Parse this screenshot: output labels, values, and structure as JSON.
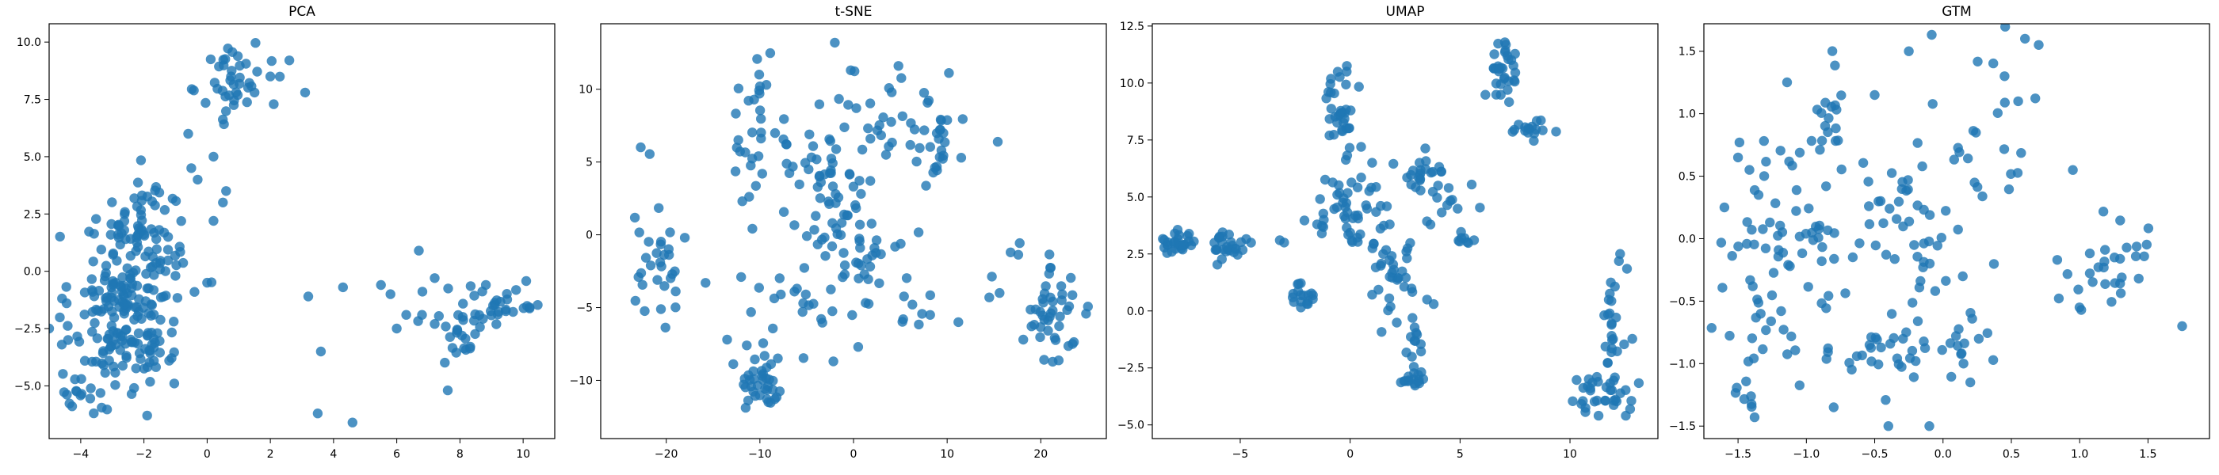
{
  "chart_data": [
    {
      "type": "scatter",
      "title": "PCA",
      "xlabel": "",
      "ylabel": "",
      "xlim": [
        -5.0,
        11.0
      ],
      "ylim": [
        -7.3,
        10.8
      ],
      "xticks": [
        -4,
        -2,
        0,
        2,
        4,
        6,
        8,
        10
      ],
      "yticks": [
        -5.0,
        -2.5,
        0.0,
        2.5,
        5.0,
        7.5,
        10.0
      ],
      "xtick_labels": [
        "−4",
        "−2",
        "0",
        "2",
        "4",
        "6",
        "8",
        "10"
      ],
      "ytick_labels": [
        "−5.0",
        "−2.5",
        "0.0",
        "2.5",
        "5.0",
        "7.5",
        "10.0"
      ],
      "grid": false,
      "color": "#1f77b4",
      "clusters": [
        {
          "x": -2.6,
          "y": -1.8,
          "sx": 0.85,
          "sy": 1.7,
          "n": 180
        },
        {
          "x": -2.0,
          "y": 1.6,
          "sx": 0.7,
          "sy": 1.2,
          "n": 70
        },
        {
          "x": -4.0,
          "y": -5.0,
          "sx": 0.4,
          "sy": 0.6,
          "n": 16
        },
        {
          "x": 0.9,
          "y": 8.2,
          "sx": 0.55,
          "sy": 0.9,
          "n": 40
        },
        {
          "x": 9.0,
          "y": -1.5,
          "sx": 0.9,
          "sy": 0.8,
          "n": 40
        },
        {
          "x": 7.9,
          "y": -3.6,
          "sx": 0.4,
          "sy": 0.9,
          "n": 15
        }
      ],
      "points": [
        [
          -0.6,
          6.0
        ],
        [
          -0.3,
          4.0
        ],
        [
          0.2,
          5.0
        ],
        [
          0.6,
          3.5
        ],
        [
          0.5,
          3.0
        ],
        [
          0.2,
          2.2
        ],
        [
          0.0,
          -0.5
        ],
        [
          -0.5,
          4.5
        ],
        [
          2.6,
          9.2
        ],
        [
          3.1,
          7.8
        ],
        [
          1.5,
          7.8
        ],
        [
          2.0,
          8.5
        ],
        [
          6.7,
          0.9
        ],
        [
          6.3,
          -1.9
        ],
        [
          5.8,
          -1.0
        ],
        [
          5.5,
          -0.6
        ],
        [
          6.8,
          -1.9
        ],
        [
          7.2,
          -0.3
        ],
        [
          7.2,
          -2.3
        ],
        [
          6.0,
          -2.5
        ],
        [
          4.3,
          -0.7
        ],
        [
          3.2,
          -1.1
        ],
        [
          3.6,
          -3.5
        ],
        [
          3.5,
          -6.2
        ],
        [
          4.6,
          -6.6
        ],
        [
          -4.6,
          -3.2
        ],
        [
          -4.4,
          -3.0
        ],
        [
          -0.4,
          -0.9
        ],
        [
          -1.2,
          -3.9
        ]
      ]
    },
    {
      "type": "scatter",
      "title": "t-SNE",
      "xlabel": "",
      "ylabel": "",
      "xlim": [
        -27.0,
        27.0
      ],
      "ylim": [
        -14.0,
        14.5
      ],
      "xticks": [
        -20,
        -10,
        0,
        10,
        20
      ],
      "yticks": [
        -10,
        -5,
        0,
        5,
        10
      ],
      "xtick_labels": [
        "−20",
        "−10",
        "0",
        "10",
        "20"
      ],
      "ytick_labels": [
        "−10",
        "−5",
        "0",
        "5",
        "10"
      ],
      "grid": false,
      "color": "#1f77b4",
      "clusters": [
        {
          "x": -21.0,
          "y": -1.0,
          "sx": 1.6,
          "sy": 2.5,
          "n": 32
        },
        {
          "x": -9.5,
          "y": -10.3,
          "sx": 1.3,
          "sy": 0.9,
          "n": 36
        },
        {
          "x": 21.0,
          "y": -5.0,
          "sx": 2.3,
          "sy": 2.0,
          "n": 48
        },
        {
          "x": 6.0,
          "y": 8.0,
          "sx": 3.2,
          "sy": 1.8,
          "n": 36
        },
        {
          "x": -1.5,
          "y": 0.5,
          "sx": 3.2,
          "sy": 2.8,
          "n": 65
        },
        {
          "x": -10.5,
          "y": 7.5,
          "sx": 1.8,
          "sy": 2.6,
          "n": 30
        },
        {
          "x": 3.5,
          "y": -3.0,
          "sx": 2.2,
          "sy": 1.6,
          "n": 20
        },
        {
          "x": -6.5,
          "y": -5.5,
          "sx": 2.5,
          "sy": 1.6,
          "n": 18
        },
        {
          "x": 9.0,
          "y": 5.0,
          "sx": 1.0,
          "sy": 1.2,
          "n": 12
        },
        {
          "x": -4.0,
          "y": 5.5,
          "sx": 2.0,
          "sy": 1.5,
          "n": 18
        }
      ],
      "points": [
        [
          -2.0,
          13.2
        ],
        [
          -10.0,
          10.2
        ],
        [
          -9.3,
          10.3
        ],
        [
          4.8,
          11.6
        ],
        [
          11.5,
          5.3
        ],
        [
          11.2,
          -6.0
        ],
        [
          14.5,
          -4.3
        ],
        [
          -13.5,
          -7.2
        ],
        [
          -15.8,
          -3.3
        ],
        [
          -11.4,
          -7.6
        ],
        [
          1.8,
          6.6
        ],
        [
          0.3,
          8.7
        ],
        [
          -0.3,
          11.3
        ],
        [
          0.5,
          -7.7
        ],
        [
          -12.0,
          -2.9
        ],
        [
          15.6,
          -4.0
        ]
      ]
    },
    {
      "type": "scatter",
      "title": "UMAP",
      "xlabel": "",
      "ylabel": "",
      "xlim": [
        -9.0,
        14.0
      ],
      "ylim": [
        -5.6,
        12.6
      ],
      "xticks": [
        -5,
        0,
        5,
        10
      ],
      "yticks": [
        -5.0,
        -2.5,
        0.0,
        2.5,
        5.0,
        7.5,
        10.0,
        12.5
      ],
      "xtick_labels": [
        "−5",
        "0",
        "5",
        "10"
      ],
      "ytick_labels": [
        "−5.0",
        "−2.5",
        "0.0",
        "2.5",
        "5.0",
        "7.5",
        "10.0",
        "12.5"
      ],
      "grid": false,
      "color": "#1f77b4",
      "clusters": [
        {
          "x": -7.8,
          "y": 3.0,
          "sx": 0.4,
          "sy": 0.25,
          "n": 28
        },
        {
          "x": -5.5,
          "y": 2.9,
          "sx": 0.35,
          "sy": 0.35,
          "n": 28
        },
        {
          "x": -2.1,
          "y": 0.7,
          "sx": 0.25,
          "sy": 0.3,
          "n": 18
        },
        {
          "x": -0.5,
          "y": 8.9,
          "sx": 0.4,
          "sy": 0.9,
          "n": 34
        },
        {
          "x": 0.0,
          "y": 4.5,
          "sx": 0.9,
          "sy": 0.9,
          "n": 50
        },
        {
          "x": 2.2,
          "y": 1.6,
          "sx": 0.8,
          "sy": 0.9,
          "n": 30
        },
        {
          "x": 3.2,
          "y": 6.0,
          "sx": 0.6,
          "sy": 0.4,
          "n": 22
        },
        {
          "x": 2.9,
          "y": -1.5,
          "sx": 0.25,
          "sy": 0.8,
          "n": 14
        },
        {
          "x": 2.9,
          "y": -3.0,
          "sx": 0.3,
          "sy": 0.2,
          "n": 14
        },
        {
          "x": 4.6,
          "y": 4.6,
          "sx": 0.5,
          "sy": 0.5,
          "n": 12
        },
        {
          "x": 5.3,
          "y": 3.1,
          "sx": 0.2,
          "sy": 0.15,
          "n": 8
        },
        {
          "x": 6.9,
          "y": 10.4,
          "sx": 0.4,
          "sy": 0.8,
          "n": 32
        },
        {
          "x": 8.2,
          "y": 8.0,
          "sx": 0.4,
          "sy": 0.2,
          "n": 16
        },
        {
          "x": 12.0,
          "y": -0.5,
          "sx": 0.3,
          "sy": 1.3,
          "n": 26
        },
        {
          "x": 11.2,
          "y": -3.7,
          "sx": 0.75,
          "sy": 0.6,
          "n": 34
        }
      ],
      "points": [
        [
          -1.5,
          3.8
        ],
        [
          -1.2,
          4.0
        ],
        [
          -3.2,
          3.1
        ],
        [
          -3.0,
          3.0
        ],
        [
          1.8,
          3.8
        ],
        [
          1.5,
          2.5
        ],
        [
          1.8,
          1.5
        ],
        [
          3.5,
          0.5
        ],
        [
          3.8,
          0.3
        ],
        [
          4.0,
          5.5
        ],
        [
          0.5,
          7.2
        ],
        [
          1.0,
          6.5
        ]
      ]
    },
    {
      "type": "scatter",
      "title": "GTM",
      "xlabel": "",
      "ylabel": "",
      "xlim": [
        -1.75,
        1.95
      ],
      "ylim": [
        -1.6,
        1.72
      ],
      "xticks": [
        -1.5,
        -1.0,
        -0.5,
        0.0,
        0.5,
        1.0,
        1.5
      ],
      "yticks": [
        -1.5,
        -1.0,
        -0.5,
        0.0,
        0.5,
        1.0,
        1.5
      ],
      "xtick_labels": [
        "−1.5",
        "−1.0",
        "−0.5",
        "0.0",
        "0.5",
        "1.0",
        "1.5"
      ],
      "ytick_labels": [
        "−1.5",
        "−1.0",
        "−0.5",
        "0.0",
        "0.5",
        "1.0",
        "1.5"
      ],
      "grid": false,
      "color": "#1f77b4",
      "clusters": [
        {
          "x": -1.0,
          "y": -0.05,
          "sx": 0.28,
          "sy": 0.15,
          "n": 40
        },
        {
          "x": -1.25,
          "y": -0.65,
          "sx": 0.2,
          "sy": 0.25,
          "n": 26
        },
        {
          "x": -0.4,
          "y": -0.95,
          "sx": 0.25,
          "sy": 0.15,
          "n": 26
        },
        {
          "x": -0.05,
          "y": -0.75,
          "sx": 0.2,
          "sy": 0.25,
          "n": 18
        },
        {
          "x": -0.3,
          "y": 0.3,
          "sx": 0.2,
          "sy": 0.15,
          "n": 22
        },
        {
          "x": 0.2,
          "y": 0.85,
          "sx": 0.25,
          "sy": 0.35,
          "n": 26
        },
        {
          "x": -0.8,
          "y": 1.1,
          "sx": 0.08,
          "sy": 0.2,
          "n": 16
        },
        {
          "x": -1.1,
          "y": 0.6,
          "sx": 0.2,
          "sy": 0.25,
          "n": 16
        },
        {
          "x": 1.2,
          "y": -0.25,
          "sx": 0.2,
          "sy": 0.2,
          "n": 30
        },
        {
          "x": -0.15,
          "y": -0.2,
          "sx": 0.2,
          "sy": 0.2,
          "n": 18
        },
        {
          "x": -1.45,
          "y": -1.25,
          "sx": 0.05,
          "sy": 0.1,
          "n": 8
        }
      ],
      "points": [
        [
          0.6,
          1.6
        ],
        [
          0.7,
          1.55
        ],
        [
          -0.25,
          1.5
        ],
        [
          -0.5,
          1.15
        ],
        [
          -0.4,
          -1.5
        ],
        [
          -0.8,
          -1.35
        ],
        [
          -0.1,
          -1.5
        ],
        [
          1.75,
          -0.7
        ],
        [
          0.95,
          0.55
        ],
        [
          0.55,
          1.1
        ],
        [
          0.45,
          1.3
        ],
        [
          -1.6,
          0.25
        ],
        [
          -1.5,
          0.65
        ],
        [
          -1.35,
          0.35
        ],
        [
          0.15,
          -1.0
        ],
        [
          0.2,
          -1.15
        ]
      ]
    }
  ]
}
